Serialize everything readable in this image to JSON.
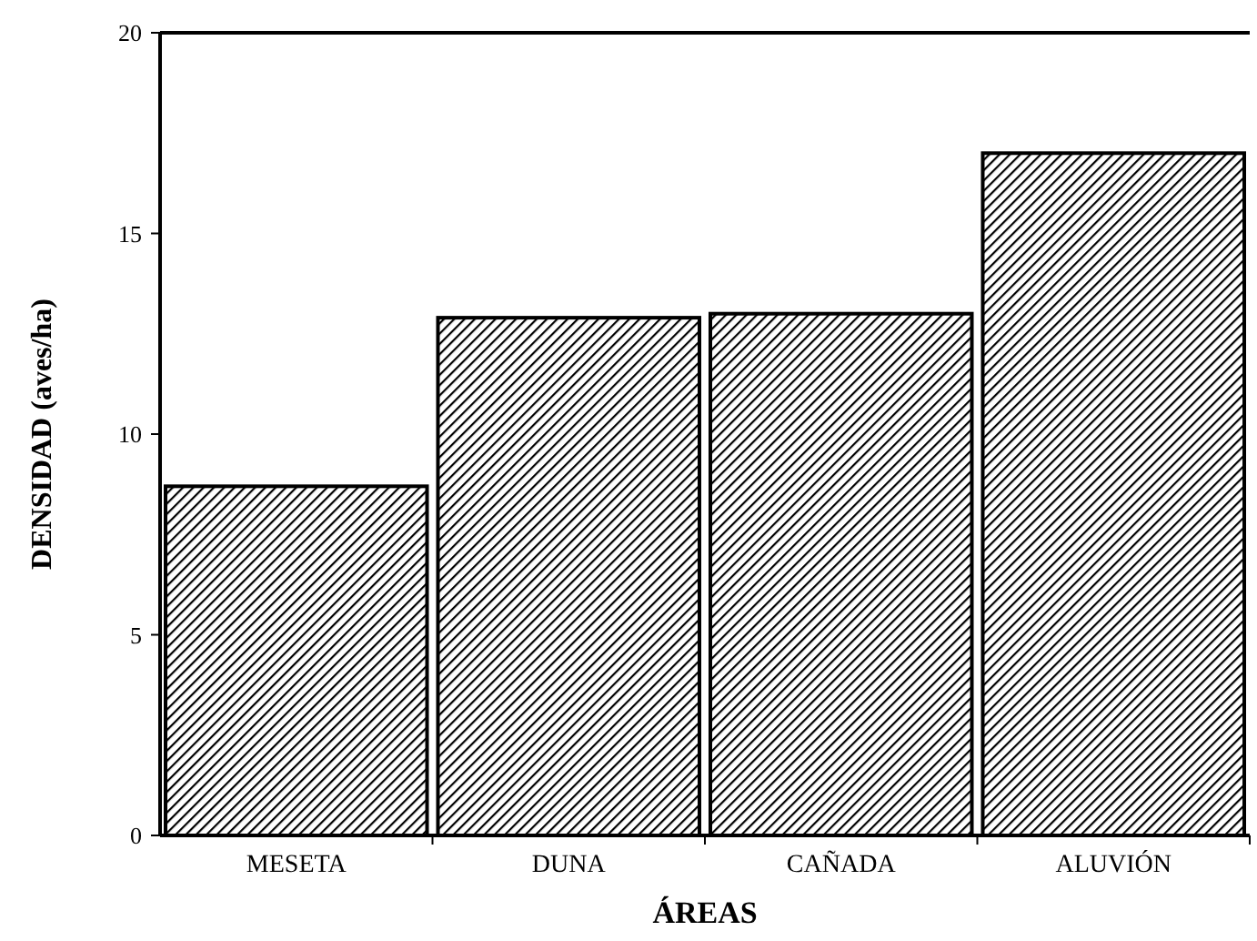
{
  "chart_data": {
    "type": "bar",
    "xlabel": "ÁREAS",
    "ylabel": "DENSIDAD (aves/ha)",
    "categories": [
      "MESETA",
      "DUNA",
      "CAÑADA",
      "ALUVIÓN"
    ],
    "values": [
      8.7,
      12.9,
      13.0,
      17.0
    ],
    "color": "#000000",
    "ylim": [
      0,
      20
    ],
    "yticks": [
      0,
      5,
      10,
      15,
      20
    ],
    "grid": false
  }
}
